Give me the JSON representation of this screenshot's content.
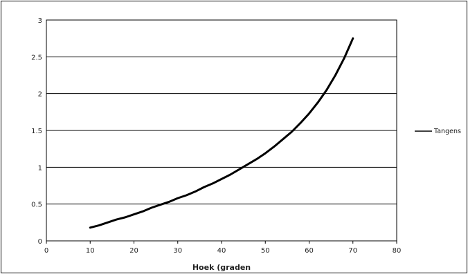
{
  "chart_data": {
    "type": "line",
    "title": "",
    "xlabel": "Hoek (graden",
    "ylabel": "",
    "xlim": [
      0,
      80
    ],
    "ylim": [
      0,
      3
    ],
    "x_ticks": [
      0,
      10,
      20,
      30,
      40,
      50,
      60,
      70,
      80
    ],
    "y_ticks": [
      0,
      0.5,
      1,
      1.5,
      2,
      2.5,
      3
    ],
    "x_tick_labels": [
      "0",
      "10",
      "20",
      "30",
      "40",
      "50",
      "60",
      "70",
      "80"
    ],
    "y_tick_labels": [
      "0",
      "0.5",
      "1",
      "1.5",
      "2",
      "2.5",
      "3"
    ],
    "grid": "horizontal",
    "legend_position": "right",
    "series": [
      {
        "name": "Tangens",
        "color": "#000000",
        "x": [
          10,
          12,
          14,
          16,
          18,
          20,
          22,
          24,
          26,
          28,
          30,
          32,
          34,
          36,
          38,
          40,
          42,
          44,
          46,
          48,
          50,
          52,
          54,
          56,
          58,
          60,
          62,
          64,
          66,
          68,
          70
        ],
        "y": [
          0.18,
          0.21,
          0.25,
          0.29,
          0.32,
          0.36,
          0.4,
          0.45,
          0.49,
          0.53,
          0.58,
          0.62,
          0.67,
          0.73,
          0.78,
          0.84,
          0.9,
          0.97,
          1.04,
          1.11,
          1.19,
          1.28,
          1.38,
          1.48,
          1.6,
          1.73,
          1.88,
          2.05,
          2.25,
          2.48,
          2.75
        ]
      }
    ]
  }
}
